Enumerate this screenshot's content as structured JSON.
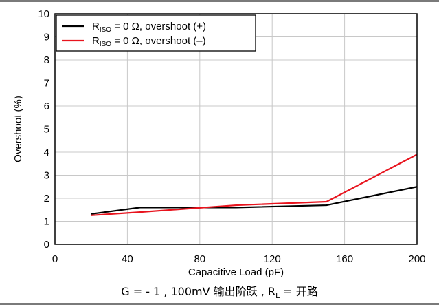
{
  "chart_data": {
    "type": "line",
    "xlabel": "Capacitive Load (pF)",
    "ylabel": "Overshoot (%)",
    "xlim": [
      0,
      200
    ],
    "ylim": [
      0,
      10
    ],
    "xticks": [
      0,
      40,
      80,
      120,
      160,
      200
    ],
    "yticks": [
      0,
      1,
      2,
      3,
      4,
      5,
      6,
      7,
      8,
      9,
      10
    ],
    "grid": true,
    "legend_position": "top-left",
    "series": [
      {
        "name_main": "R",
        "name_sub": "ISO",
        "name_rest": " = 0 Ω, overshoot (+)",
        "color": "#000000",
        "x": [
          20,
          47,
          100,
          150,
          200
        ],
        "y": [
          1.32,
          1.6,
          1.6,
          1.7,
          2.5
        ]
      },
      {
        "name_main": "R",
        "name_sub": "ISO",
        "name_rest": " = 0 Ω, overshoot (–)",
        "color": "#e8141e",
        "x": [
          20,
          47,
          100,
          150,
          200
        ],
        "y": [
          1.26,
          1.4,
          1.7,
          1.85,
          3.9
        ]
      }
    ]
  },
  "caption": {
    "before": "G =  - 1 , 100mV 输出阶跃 , R",
    "sub": "L",
    "after": " = 开路"
  }
}
